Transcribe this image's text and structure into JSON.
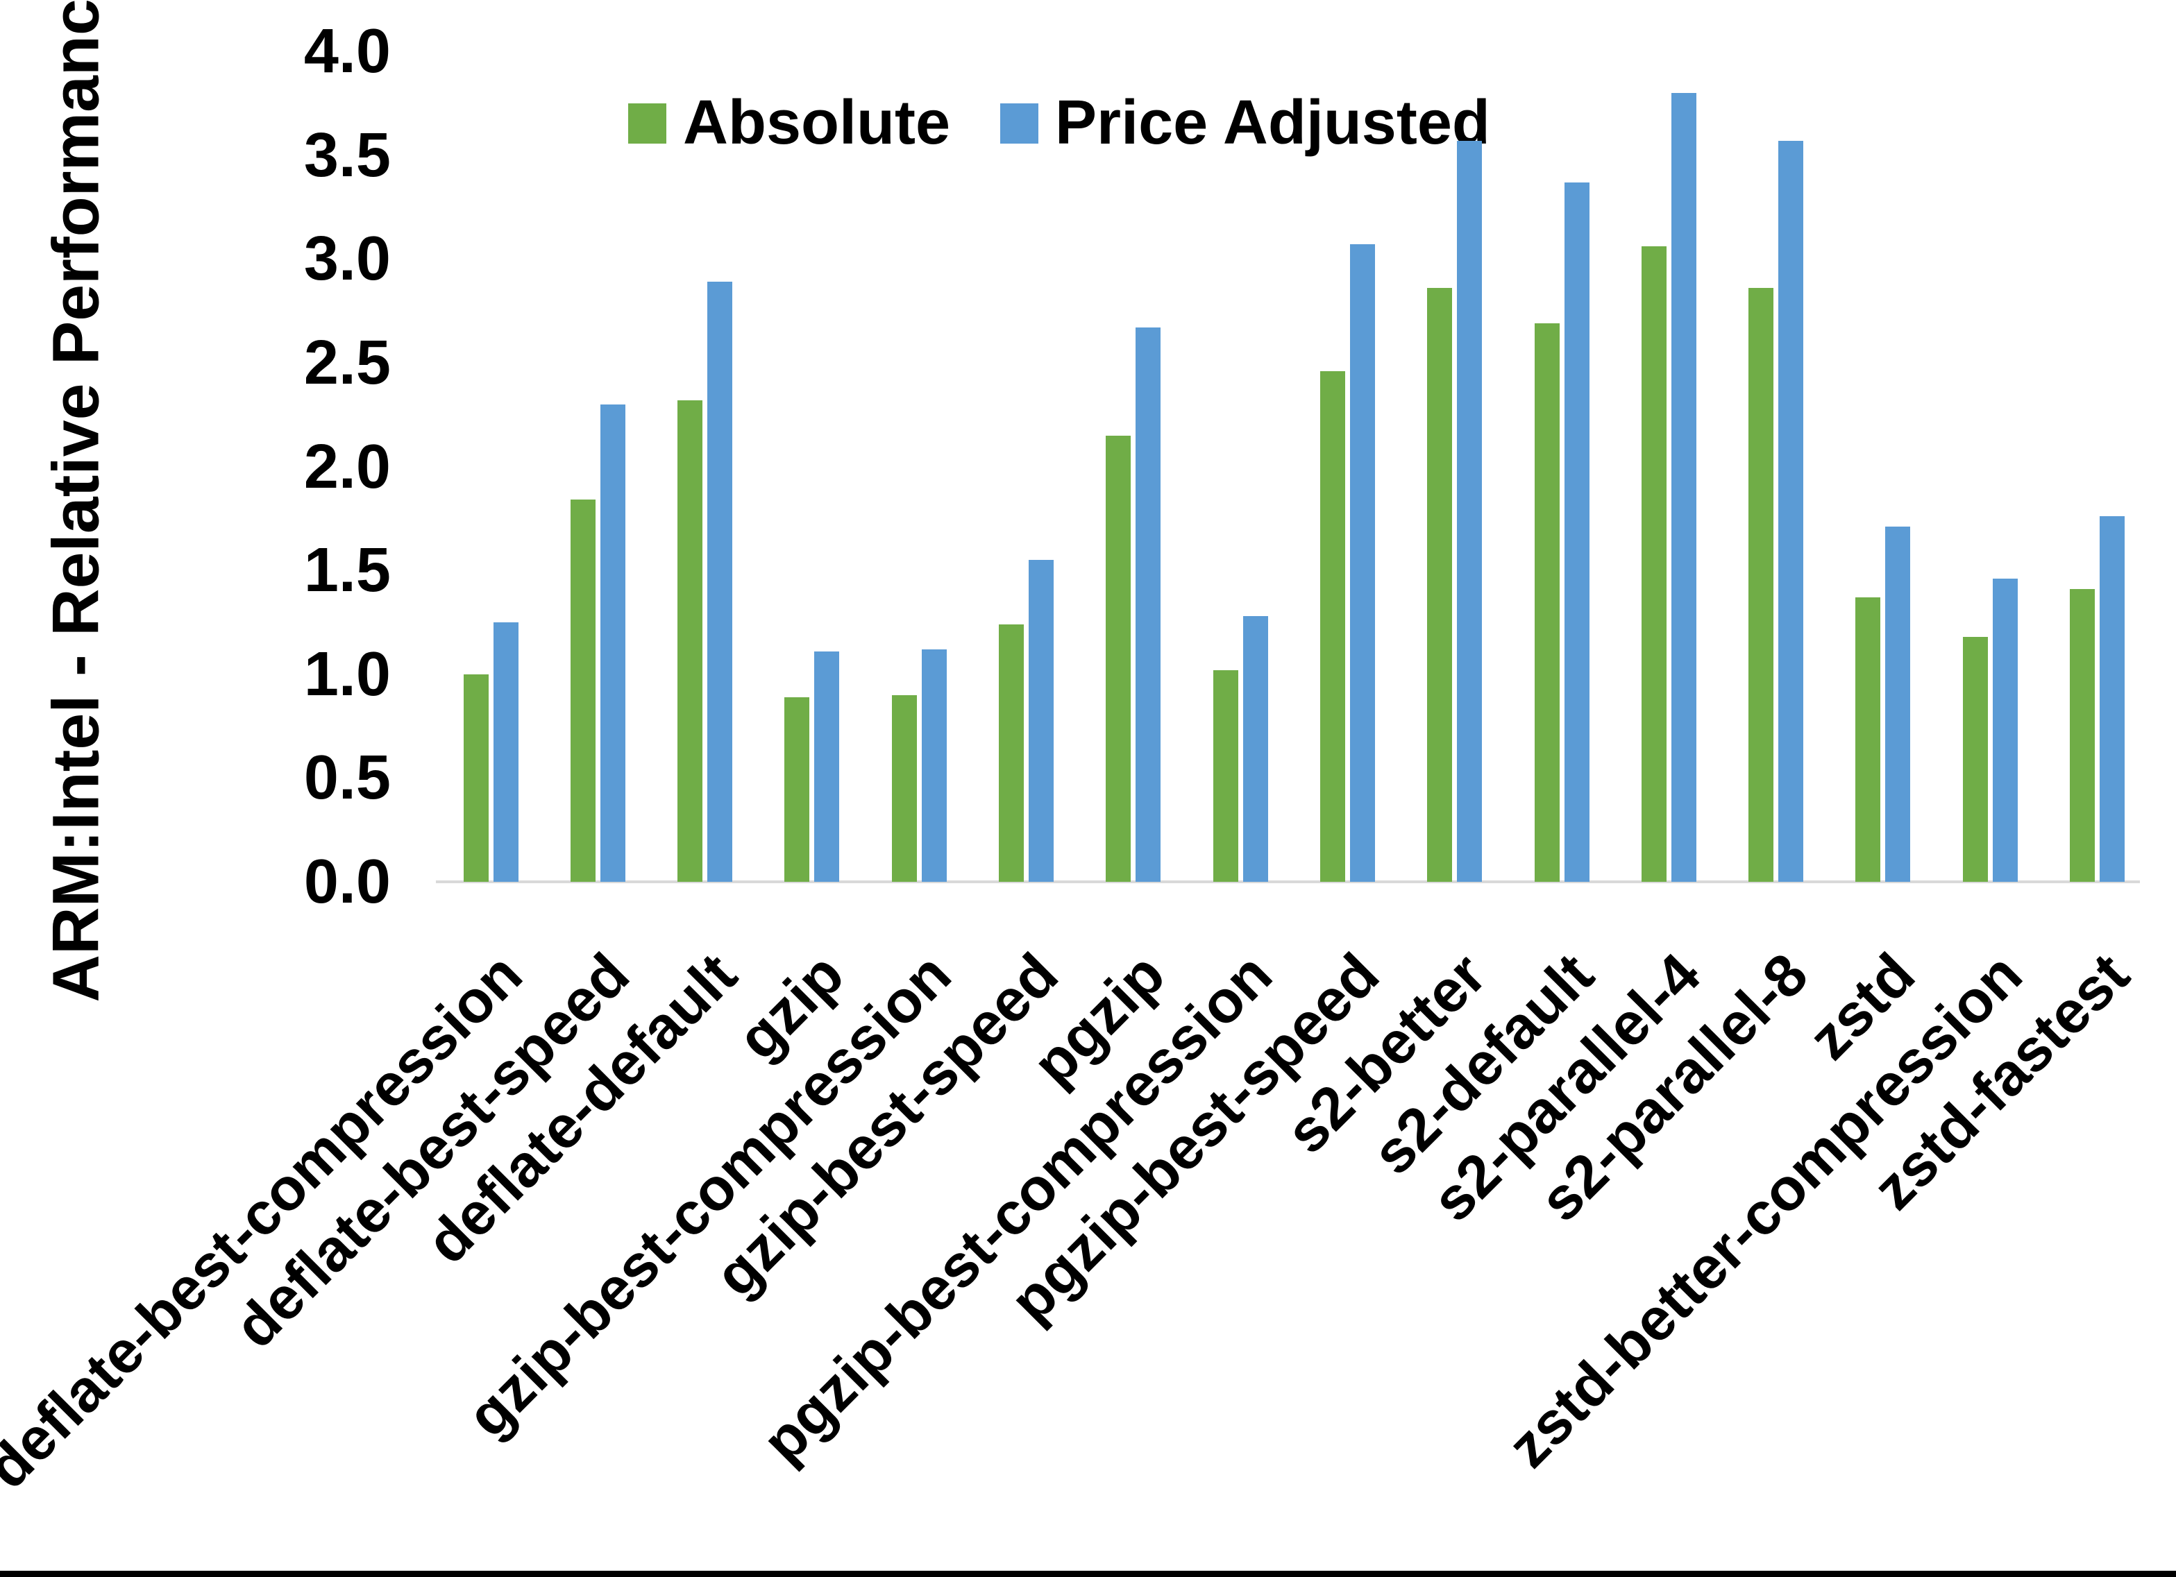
{
  "y_axis_title": "ARM:Intel - Relative Performance",
  "legend": {
    "items": [
      {
        "label": "Absolute",
        "color": "#70AD47"
      },
      {
        "label": "Price Adjusted",
        "color": "#5B9BD5"
      }
    ]
  },
  "chart_data": {
    "type": "bar",
    "title": "",
    "xlabel": "",
    "ylabel": "ARM:Intel - Relative Performance",
    "ylim": [
      0,
      4.0
    ],
    "ytick_step": 0.5,
    "y_tick_labels": [
      "0.0",
      "0.5",
      "1.0",
      "1.5",
      "2.0",
      "2.5",
      "3.0",
      "3.5",
      "4.0"
    ],
    "grid": false,
    "legend_position": "top",
    "categories": [
      "deflate-best-compression",
      "deflate-best-speed",
      "deflate-default",
      "gzip",
      "gzip-best-compression",
      "gzip-best-speed",
      "pgzip",
      "pgzip-best-compression",
      "pgzip-best-speed",
      "s2-better",
      "s2-default",
      "s2-parallel-4",
      "s2-parallel-8",
      "zstd",
      "zstd-better-compression",
      "zstd-fastest"
    ],
    "series": [
      {
        "name": "Absolute",
        "color": "#70AD47",
        "values": [
          1.0,
          1.84,
          2.32,
          0.89,
          0.9,
          1.24,
          2.15,
          1.02,
          2.46,
          2.86,
          2.69,
          3.06,
          2.86,
          1.37,
          1.18,
          1.41
        ]
      },
      {
        "name": "Price Adjusted",
        "color": "#5B9BD5",
        "values": [
          1.25,
          2.3,
          2.89,
          1.11,
          1.12,
          1.55,
          2.67,
          1.28,
          3.07,
          3.57,
          3.37,
          3.8,
          3.57,
          1.71,
          1.46,
          1.76
        ]
      }
    ]
  }
}
